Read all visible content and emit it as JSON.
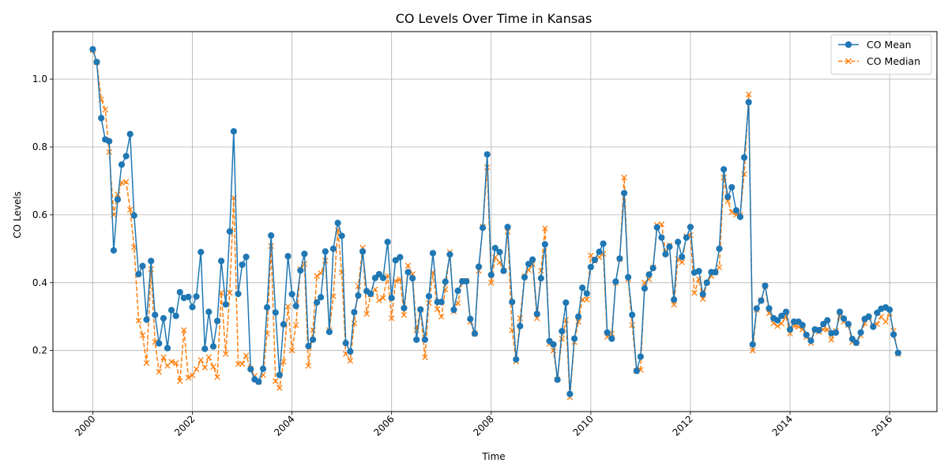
{
  "chart_data": {
    "type": "line",
    "title": "CO Levels Over Time in Kansas",
    "xlabel": "Time",
    "ylabel": "CO Levels",
    "xlim": [
      1999.2,
      2016.95
    ],
    "ylim": [
      0.02,
      1.14
    ],
    "xticks": [
      2000,
      2002,
      2004,
      2006,
      2008,
      2010,
      2012,
      2014,
      2016
    ],
    "yticks": [
      0.2,
      0.4,
      0.6,
      0.8,
      1.0
    ],
    "ytick_labels": [
      "0.2",
      "0.4",
      "0.6",
      "0.8",
      "1.0"
    ],
    "grid": true,
    "legend_position": "top-right",
    "colors": {
      "mean": "#1f77b4",
      "median": "#ff7f0e"
    },
    "series": [
      {
        "name": "CO Mean",
        "style": "solid-circle",
        "x": [
          2000.0,
          2000.08,
          2000.17,
          2000.25,
          2000.33,
          2000.42,
          2000.5,
          2000.58,
          2000.67,
          2000.75,
          2000.83,
          2000.92,
          2001.0,
          2001.08,
          2001.17,
          2001.25,
          2001.33,
          2001.42,
          2001.5,
          2001.58,
          2001.67,
          2001.75,
          2001.83,
          2001.92,
          2002.0,
          2002.08,
          2002.17,
          2002.25,
          2002.33,
          2002.42,
          2002.5,
          2002.58,
          2002.67,
          2002.75,
          2002.83,
          2002.92,
          2003.0,
          2003.08,
          2003.17,
          2003.25,
          2003.33,
          2003.42,
          2003.5,
          2003.58,
          2003.67,
          2003.75,
          2003.83,
          2003.92,
          2004.0,
          2004.08,
          2004.17,
          2004.25,
          2004.33,
          2004.42,
          2004.5,
          2004.58,
          2004.67,
          2004.75,
          2004.83,
          2004.92,
          2005.0,
          2005.08,
          2005.17,
          2005.25,
          2005.33,
          2005.42,
          2005.5,
          2005.58,
          2005.67,
          2005.75,
          2005.83,
          2005.92,
          2006.0,
          2006.08,
          2006.17,
          2006.25,
          2006.33,
          2006.42,
          2006.5,
          2006.58,
          2006.67,
          2006.75,
          2006.83,
          2006.92,
          2007.0,
          2007.08,
          2007.17,
          2007.25,
          2007.33,
          2007.42,
          2007.5,
          2007.58,
          2007.67,
          2007.75,
          2007.83,
          2007.92,
          2008.0,
          2008.08,
          2008.17,
          2008.25,
          2008.33,
          2008.42,
          2008.5,
          2008.58,
          2008.67,
          2008.75,
          2008.83,
          2008.92,
          2009.0,
          2009.08,
          2009.17,
          2009.25,
          2009.33,
          2009.42,
          2009.5,
          2009.58,
          2009.67,
          2009.75,
          2009.83,
          2009.92,
          2010.0,
          2010.08,
          2010.17,
          2010.25,
          2010.33,
          2010.42,
          2010.5,
          2010.58,
          2010.67,
          2010.75,
          2010.83,
          2010.92,
          2011.0,
          2011.08,
          2011.17,
          2011.25,
          2011.33,
          2011.42,
          2011.5,
          2011.58,
          2011.67,
          2011.75,
          2011.83,
          2011.92,
          2012.0,
          2012.08,
          2012.17,
          2012.25,
          2012.33,
          2012.42,
          2012.5,
          2012.58,
          2012.67,
          2012.75,
          2012.83,
          2012.92,
          2013.0,
          2013.08,
          2013.17,
          2013.25,
          2013.33,
          2013.42,
          2013.5,
          2013.58,
          2013.67,
          2013.75,
          2013.83,
          2013.92,
          2014.0,
          2014.08,
          2014.17,
          2014.25,
          2014.33,
          2014.42,
          2014.5,
          2014.58,
          2014.67,
          2014.75,
          2014.83,
          2014.92,
          2015.0,
          2015.08,
          2015.17,
          2015.25,
          2015.33,
          2015.42,
          2015.5,
          2015.58,
          2015.67,
          2015.75,
          2015.83,
          2015.92,
          2016.0,
          2016.08,
          2016.17
        ],
        "y": [
          1.088,
          1.05,
          0.885,
          0.822,
          0.817,
          0.495,
          0.645,
          0.748,
          0.773,
          0.838,
          0.598,
          0.425,
          0.449,
          0.291,
          0.464,
          0.305,
          0.221,
          0.295,
          0.207,
          0.319,
          0.302,
          0.372,
          0.355,
          0.358,
          0.328,
          0.359,
          0.49,
          0.205,
          0.314,
          0.212,
          0.287,
          0.464,
          0.336,
          0.551,
          0.846,
          0.367,
          0.453,
          0.476,
          0.145,
          0.115,
          0.108,
          0.146,
          0.327,
          0.539,
          0.312,
          0.128,
          0.277,
          0.478,
          0.366,
          0.331,
          0.436,
          0.485,
          0.213,
          0.232,
          0.342,
          0.357,
          0.492,
          0.255,
          0.5,
          0.576,
          0.538,
          0.222,
          0.197,
          0.313,
          0.362,
          0.492,
          0.375,
          0.367,
          0.414,
          0.425,
          0.414,
          0.52,
          0.355,
          0.466,
          0.475,
          0.325,
          0.431,
          0.413,
          0.232,
          0.321,
          0.232,
          0.36,
          0.487,
          0.343,
          0.343,
          0.403,
          0.483,
          0.32,
          0.376,
          0.404,
          0.404,
          0.293,
          0.25,
          0.447,
          0.562,
          0.778,
          0.423,
          0.502,
          0.49,
          0.435,
          0.564,
          0.343,
          0.174,
          0.272,
          0.416,
          0.455,
          0.468,
          0.308,
          0.413,
          0.513,
          0.228,
          0.218,
          0.114,
          0.257,
          0.341,
          0.072,
          0.235,
          0.3,
          0.385,
          0.368,
          0.446,
          0.467,
          0.491,
          0.515,
          0.253,
          0.235,
          0.403,
          0.471,
          0.664,
          0.416,
          0.305,
          0.14,
          0.182,
          0.383,
          0.424,
          0.443,
          0.563,
          0.533,
          0.484,
          0.506,
          0.35,
          0.52,
          0.476,
          0.533,
          0.564,
          0.43,
          0.434,
          0.366,
          0.4,
          0.431,
          0.431,
          0.5,
          0.734,
          0.653,
          0.681,
          0.613,
          0.594,
          0.769,
          0.932,
          0.218,
          0.324,
          0.347,
          0.391,
          0.324,
          0.295,
          0.289,
          0.302,
          0.314,
          0.262,
          0.285,
          0.285,
          0.275,
          0.246,
          0.229,
          0.262,
          0.26,
          0.278,
          0.289,
          0.251,
          0.253,
          0.314,
          0.294,
          0.278,
          0.234,
          0.223,
          0.253,
          0.293,
          0.3,
          0.27,
          0.311,
          0.323,
          0.327,
          0.32,
          0.247,
          0.193
        ]
      },
      {
        "name": "CO Median",
        "style": "dashed-x",
        "x": [
          2000.0,
          2000.08,
          2000.17,
          2000.25,
          2000.33,
          2000.42,
          2000.5,
          2000.58,
          2000.67,
          2000.75,
          2000.83,
          2000.92,
          2001.0,
          2001.08,
          2001.17,
          2001.25,
          2001.33,
          2001.42,
          2001.5,
          2001.58,
          2001.67,
          2001.75,
          2001.83,
          2001.92,
          2002.0,
          2002.08,
          2002.17,
          2002.25,
          2002.33,
          2002.42,
          2002.5,
          2002.58,
          2002.67,
          2002.75,
          2002.83,
          2002.92,
          2003.0,
          2003.08,
          2003.17,
          2003.25,
          2003.33,
          2003.42,
          2003.5,
          2003.58,
          2003.67,
          2003.75,
          2003.83,
          2003.92,
          2004.0,
          2004.08,
          2004.17,
          2004.25,
          2004.33,
          2004.42,
          2004.5,
          2004.58,
          2004.67,
          2004.75,
          2004.83,
          2004.92,
          2005.0,
          2005.08,
          2005.17,
          2005.25,
          2005.33,
          2005.42,
          2005.5,
          2005.58,
          2005.67,
          2005.75,
          2005.83,
          2005.92,
          2006.0,
          2006.08,
          2006.17,
          2006.25,
          2006.33,
          2006.42,
          2006.5,
          2006.58,
          2006.67,
          2006.75,
          2006.83,
          2006.92,
          2007.0,
          2007.08,
          2007.17,
          2007.25,
          2007.33,
          2007.42,
          2007.5,
          2007.58,
          2007.67,
          2007.75,
          2007.83,
          2007.92,
          2008.0,
          2008.08,
          2008.17,
          2008.25,
          2008.33,
          2008.42,
          2008.5,
          2008.58,
          2008.67,
          2008.75,
          2008.83,
          2008.92,
          2009.0,
          2009.08,
          2009.17,
          2009.25,
          2009.33,
          2009.42,
          2009.5,
          2009.58,
          2009.67,
          2009.75,
          2009.83,
          2009.92,
          2010.0,
          2010.08,
          2010.17,
          2010.25,
          2010.33,
          2010.42,
          2010.5,
          2010.58,
          2010.67,
          2010.75,
          2010.83,
          2010.92,
          2011.0,
          2011.08,
          2011.17,
          2011.25,
          2011.33,
          2011.42,
          2011.5,
          2011.58,
          2011.67,
          2011.75,
          2011.83,
          2011.92,
          2012.0,
          2012.08,
          2012.17,
          2012.25,
          2012.33,
          2012.42,
          2012.5,
          2012.58,
          2012.67,
          2012.75,
          2012.83,
          2012.92,
          2013.0,
          2013.08,
          2013.17,
          2013.25,
          2013.33,
          2013.42,
          2013.5,
          2013.58,
          2013.67,
          2013.75,
          2013.83,
          2013.92,
          2014.0,
          2014.08,
          2014.17,
          2014.25,
          2014.33,
          2014.42,
          2014.5,
          2014.58,
          2014.67,
          2014.75,
          2014.83,
          2014.92,
          2015.0,
          2015.08,
          2015.17,
          2015.25,
          2015.33,
          2015.42,
          2015.5,
          2015.58,
          2015.67,
          2015.75,
          2015.83,
          2015.92,
          2016.0,
          2016.08,
          2016.17
        ],
        "y": [
          1.085,
          1.05,
          0.94,
          0.91,
          0.785,
          0.6,
          0.66,
          0.695,
          0.697,
          0.615,
          0.505,
          0.288,
          0.245,
          0.163,
          0.44,
          0.225,
          0.137,
          0.18,
          0.155,
          0.167,
          0.163,
          0.11,
          0.26,
          0.12,
          0.127,
          0.145,
          0.172,
          0.15,
          0.18,
          0.152,
          0.122,
          0.37,
          0.19,
          0.37,
          0.65,
          0.16,
          0.161,
          0.185,
          0.147,
          0.125,
          0.108,
          0.128,
          0.25,
          0.508,
          0.11,
          0.09,
          0.167,
          0.33,
          0.2,
          0.275,
          0.44,
          0.455,
          0.155,
          0.26,
          0.42,
          0.428,
          0.465,
          0.26,
          0.36,
          0.555,
          0.43,
          0.19,
          0.17,
          0.28,
          0.39,
          0.503,
          0.308,
          0.365,
          0.38,
          0.348,
          0.355,
          0.42,
          0.295,
          0.405,
          0.41,
          0.305,
          0.45,
          0.425,
          0.26,
          0.32,
          0.18,
          0.34,
          0.43,
          0.322,
          0.3,
          0.38,
          0.49,
          0.315,
          0.34,
          0.405,
          0.405,
          0.285,
          0.25,
          0.435,
          0.565,
          0.74,
          0.4,
          0.475,
          0.46,
          0.435,
          0.55,
          0.26,
          0.168,
          0.295,
          0.42,
          0.437,
          0.455,
          0.295,
          0.435,
          0.56,
          0.22,
          0.2,
          0.115,
          0.235,
          0.29,
          0.062,
          0.225,
          0.285,
          0.35,
          0.35,
          0.48,
          0.465,
          0.475,
          0.485,
          0.24,
          0.25,
          0.4,
          0.47,
          0.71,
          0.41,
          0.275,
          0.14,
          0.143,
          0.4,
          0.41,
          0.445,
          0.57,
          0.572,
          0.49,
          0.51,
          0.335,
          0.47,
          0.46,
          0.537,
          0.54,
          0.37,
          0.41,
          0.352,
          0.4,
          0.42,
          0.43,
          0.445,
          0.71,
          0.64,
          0.608,
          0.6,
          0.6,
          0.72,
          0.955,
          0.2,
          0.32,
          0.348,
          0.39,
          0.31,
          0.28,
          0.272,
          0.28,
          0.3,
          0.25,
          0.272,
          0.27,
          0.262,
          0.24,
          0.222,
          0.26,
          0.255,
          0.262,
          0.262,
          0.232,
          0.258,
          0.3,
          0.285,
          0.275,
          0.225,
          0.222,
          0.245,
          0.28,
          0.298,
          0.272,
          0.278,
          0.3,
          0.285,
          0.31,
          0.258,
          0.19
        ]
      }
    ]
  }
}
